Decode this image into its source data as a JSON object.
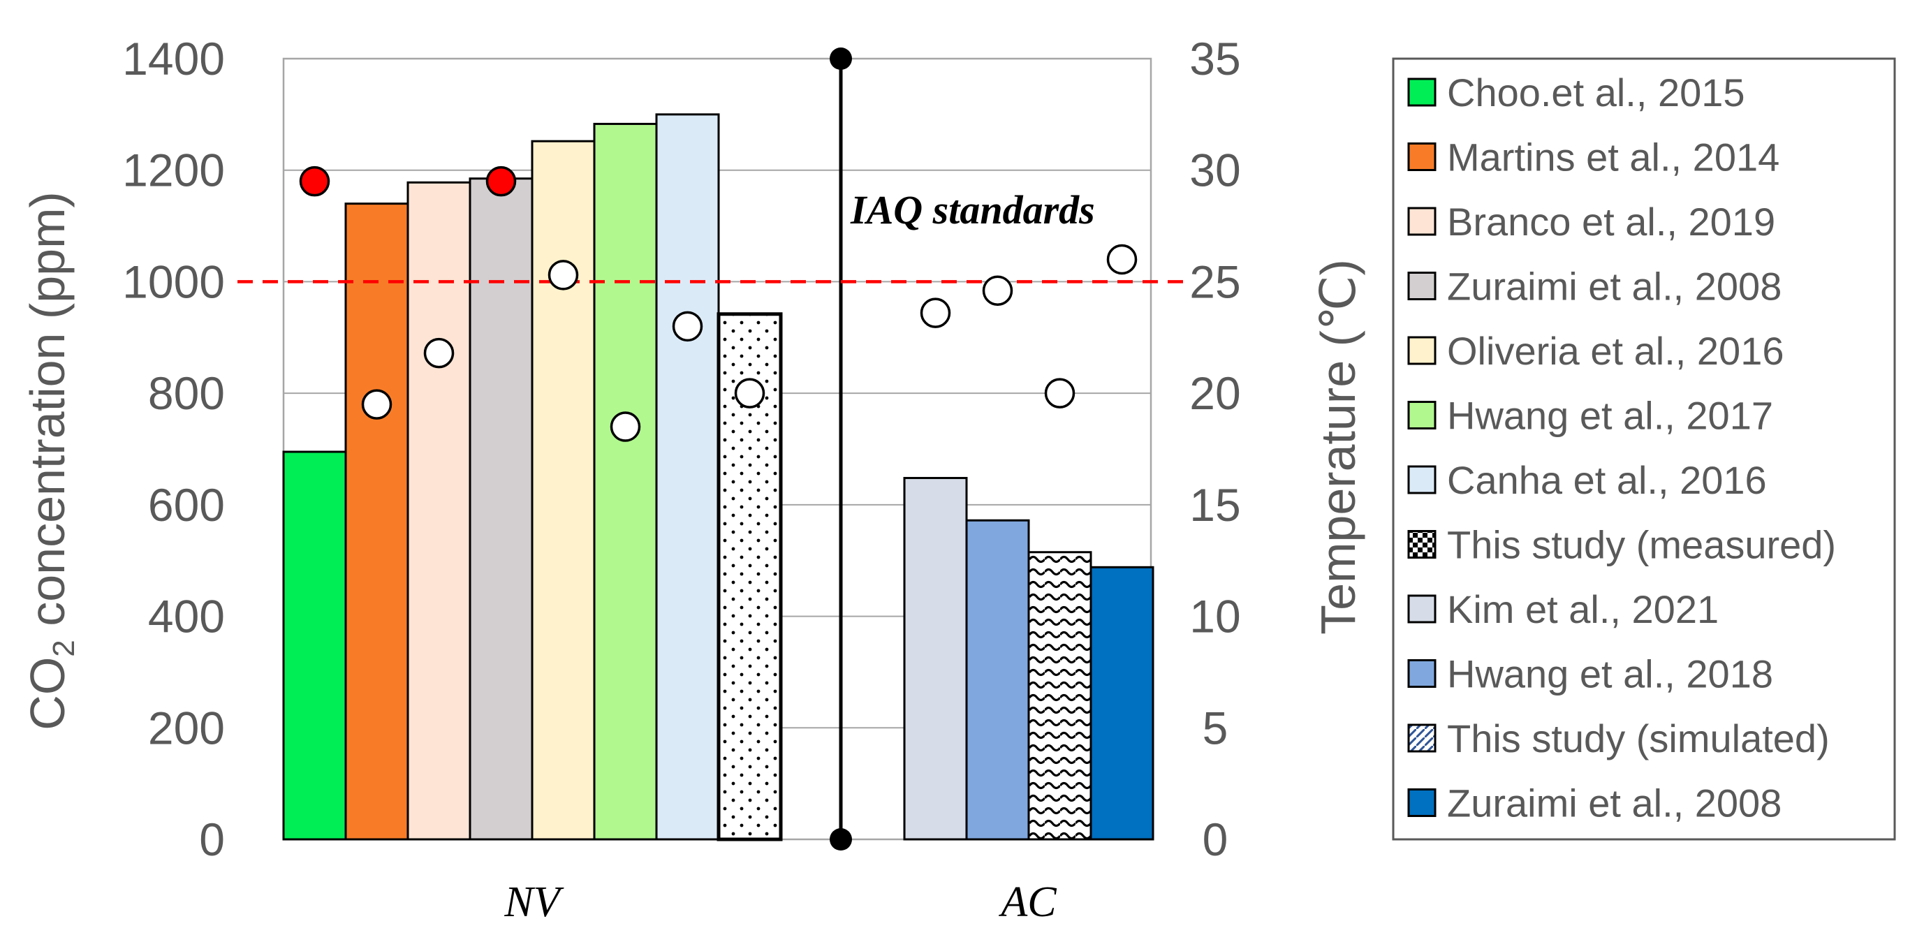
{
  "chart_data": {
    "type": "bar",
    "title": "",
    "groups": [
      {
        "label": "NV",
        "bars": [
          {
            "name": "Choo.et al., 2015",
            "co2": 695,
            "temp": null,
            "fill": "#00ee55",
            "pattern": "solid"
          },
          {
            "name": "Martins et al., 2014",
            "co2": 1140,
            "temp": 19.5,
            "fill": "#f87c27",
            "pattern": "solid"
          },
          {
            "name": "Branco et al., 2019",
            "co2": 1178,
            "temp": 21.8,
            "fill": "#fde4d5",
            "pattern": "solid"
          },
          {
            "name": "Zuraimi et al., 2008",
            "co2": 1185,
            "temp": null,
            "fill": "#d3cfd0",
            "pattern": "solid"
          },
          {
            "name": "Oliveria et al., 2016",
            "co2": 1252,
            "temp": 25.3,
            "fill": "#fff2cc",
            "pattern": "solid"
          },
          {
            "name": "Hwang et al., 2017",
            "co2": 1283,
            "temp": 18.5,
            "fill": "#b1f88f",
            "pattern": "solid"
          },
          {
            "name": "Canha et al., 2016",
            "co2": 1300,
            "temp": 23.0,
            "fill": "#dbeaf7",
            "pattern": "solid"
          },
          {
            "name": "This study (measured)",
            "co2": 942,
            "temp": 20.0,
            "fill": "#ffffff",
            "pattern": "dots"
          }
        ],
        "red_markers": [
          {
            "slot": 0,
            "temp": 29.5
          },
          {
            "slot": 3,
            "temp": 29.5
          }
        ]
      },
      {
        "label": "AC",
        "bars": [
          {
            "name": "Kim et al., 2021",
            "co2": 648,
            "temp": 23.6,
            "fill": "#d6dde8",
            "pattern": "solid"
          },
          {
            "name": "Hwang et al., 2018",
            "co2": 572,
            "temp": 24.6,
            "fill": "#80a8df",
            "pattern": "solid"
          },
          {
            "name": "This study (simulated)",
            "co2": 515,
            "temp": 20.0,
            "fill": "#ffffff",
            "pattern": "waves"
          },
          {
            "name": "Zuraimi et al., 2008",
            "co2": 488,
            "temp": 26.0,
            "fill": "#0070c0",
            "pattern": "solid"
          }
        ]
      }
    ],
    "y_left": {
      "label_main": "CO",
      "label_sub": "2",
      "label_rest": " concentration (ppm)",
      "ylim": [
        0,
        1400
      ],
      "ticks": [
        "0",
        "200",
        "400",
        "600",
        "800",
        "1000",
        "1200",
        "1400"
      ]
    },
    "y_right": {
      "label": "Temperature (℃)",
      "ylim": [
        0,
        35
      ],
      "ticks": [
        "0",
        "5",
        "10",
        "15",
        "20",
        "25",
        "30",
        "35"
      ]
    },
    "grid": true,
    "reference_line": {
      "value": 1000,
      "label": "IAQ standards",
      "color": "#ff0000"
    },
    "legend": {
      "position": "right",
      "entries": [
        "Choo.et al., 2015",
        "Martins et al., 2014",
        "Branco et al., 2019",
        "Zuraimi et al., 2008",
        "Oliveria et al., 2016",
        "Hwang et al., 2017",
        "Canha et al., 2016",
        "This study (measured)",
        "Kim et al., 2021",
        "Hwang et al., 2018",
        "This study (simulated)",
        "Zuraimi et al., 2008"
      ]
    }
  }
}
